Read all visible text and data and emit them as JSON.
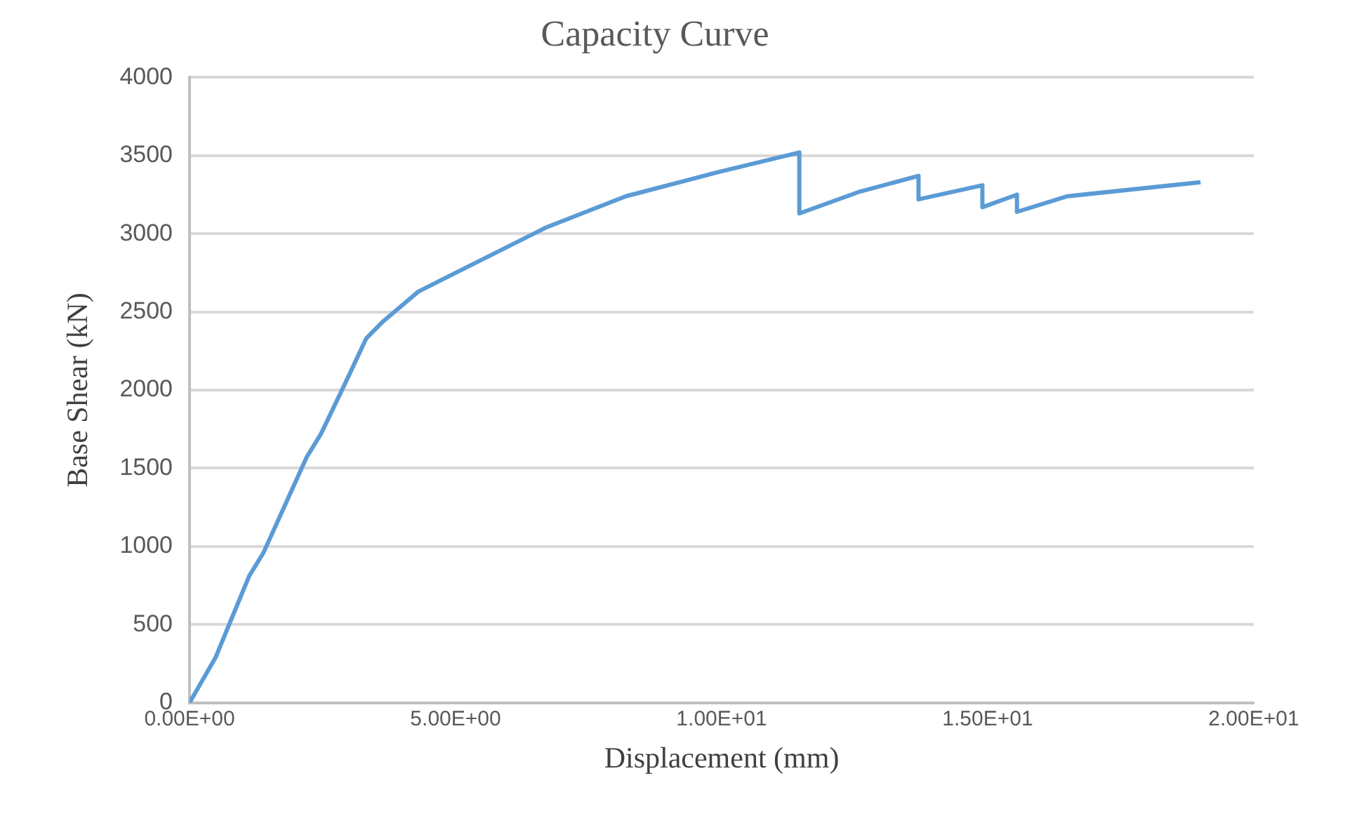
{
  "chart_data": {
    "type": "line",
    "title": "Capacity Curve",
    "xlabel": "Displacement (mm)",
    "ylabel": "Base Shear (kN)",
    "x": [
      0,
      0.49,
      1.12,
      1.39,
      2.2,
      2.47,
      2.92,
      3.32,
      3.64,
      4.3,
      5,
      6.7,
      8.2,
      10,
      11.46,
      11.46,
      12.6,
      13.7,
      13.7,
      14.9,
      14.9,
      15.55,
      15.55,
      16.5,
      19.0
    ],
    "series": [
      {
        "color": "#5b9bd5",
        "values": [
          0,
          290,
          810,
          960,
          1570,
          1720,
          2040,
          2330,
          2440,
          2630,
          2750,
          3040,
          3240,
          3400,
          3520,
          3130,
          3270,
          3370,
          3220,
          3310,
          3170,
          3250,
          3140,
          3240,
          3330
        ]
      }
    ],
    "xlim": [
      0,
      20
    ],
    "xticks": [
      {
        "value": 0,
        "label": "0.00E+00"
      },
      {
        "value": 5,
        "label": "5.00E+00"
      },
      {
        "value": 10,
        "label": "1.00E+01"
      },
      {
        "value": 15,
        "label": "1.50E+01"
      },
      {
        "value": 20,
        "label": "2.00E+01"
      }
    ],
    "ylim": [
      0,
      4000
    ],
    "yticks": [
      0,
      500,
      1000,
      1500,
      2000,
      2500,
      3000,
      3500,
      4000
    ],
    "grid": "y",
    "legend": false,
    "marker": "none",
    "line_style": "solid"
  }
}
